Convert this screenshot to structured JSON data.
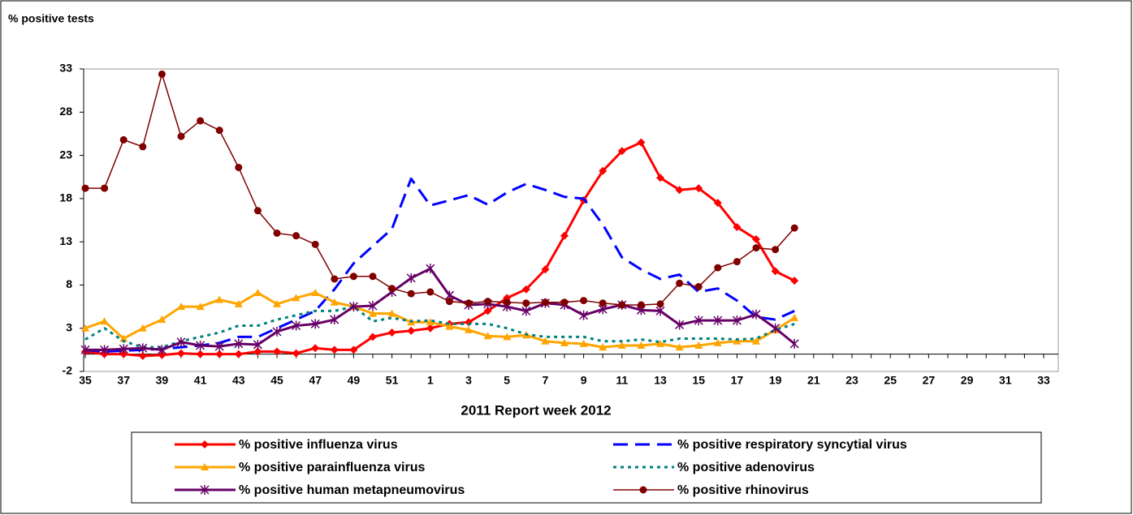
{
  "chart_data": {
    "type": "line",
    "y_label": "% positive tests",
    "x_label": "2011 Report week   2012",
    "categories": [
      "35",
      null,
      "37",
      null,
      "39",
      null,
      "41",
      null,
      "43",
      null,
      "45",
      null,
      "47",
      null,
      "49",
      null,
      "51",
      null,
      "1",
      null,
      "3",
      null,
      "5",
      null,
      "7",
      null,
      "9",
      null,
      "11",
      null,
      "13",
      null,
      "15",
      null,
      "17",
      null,
      "19",
      null,
      "21",
      null,
      "23",
      null,
      "25",
      null,
      "27",
      null,
      "29",
      null,
      "31",
      null,
      "33"
    ],
    "ylim": [
      -2,
      33
    ],
    "yticks": [
      -2,
      3,
      8,
      13,
      18,
      23,
      28,
      33
    ],
    "grid": false,
    "legend": "bottom",
    "series": [
      {
        "name": "% positive influenza virus",
        "color": "#ff0000",
        "marker": "diamond",
        "dash": "solid",
        "values": [
          0.3,
          0,
          0,
          -0.2,
          -0.1,
          0.1,
          0,
          0,
          0,
          0.3,
          0.3,
          0.1,
          0.7,
          0.5,
          0.5,
          2,
          2.5,
          2.7,
          3,
          3.5,
          3.7,
          5,
          6.5,
          7.5,
          9.8,
          13.7,
          17.8,
          21.2,
          23.5,
          24.5,
          20.4,
          19,
          19.2,
          17.5,
          14.7,
          13.3,
          9.6,
          8.5,
          null,
          null,
          null,
          null,
          null,
          null,
          null,
          null,
          null,
          null,
          null,
          null,
          null
        ]
      },
      {
        "name": "% positive respiratory syncytial virus",
        "color": "#0000ff",
        "marker": "none",
        "dash": "dash",
        "values": [
          0.5,
          0.3,
          0.4,
          0.5,
          0.6,
          0.8,
          1,
          1.3,
          2,
          2,
          3,
          4,
          5,
          7.5,
          10.5,
          12.5,
          14.5,
          20.3,
          17.2,
          17.8,
          18.4,
          17.3,
          18.7,
          19.7,
          19,
          18.2,
          18,
          15,
          11.2,
          9.8,
          8.7,
          9.2,
          7.2,
          7.6,
          6.2,
          4.3,
          4,
          5,
          null,
          null,
          null,
          null,
          null,
          null,
          null,
          null,
          null,
          null,
          null,
          null,
          null
        ]
      },
      {
        "name": "% positive parainfluenza virus",
        "color": "#ffa500",
        "marker": "triangle",
        "dash": "solid",
        "values": [
          3,
          3.8,
          1.8,
          3,
          4,
          5.5,
          5.5,
          6.3,
          5.8,
          7.1,
          5.8,
          6.5,
          7.1,
          6,
          5.5,
          4.7,
          4.7,
          3.7,
          3.7,
          3.2,
          2.8,
          2.1,
          2,
          2.2,
          1.5,
          1.3,
          1.2,
          0.8,
          1,
          1,
          1.2,
          0.8,
          1,
          1.3,
          1.5,
          1.5,
          2.8,
          4.2,
          null,
          null,
          null,
          null,
          null,
          null,
          null,
          null,
          null,
          null,
          null,
          null,
          null
        ]
      },
      {
        "name": "% positive adenovirus",
        "color": "#008080",
        "marker": "none",
        "dash": "dot",
        "values": [
          1.7,
          3,
          1.5,
          0.8,
          0.8,
          1.5,
          2,
          2.5,
          3.3,
          3.3,
          4,
          4.5,
          5,
          5,
          5.5,
          3.8,
          4.2,
          3.8,
          3.9,
          3.5,
          3.5,
          3.5,
          3,
          2.3,
          2,
          2,
          2,
          1.5,
          1.5,
          1.7,
          1.4,
          1.8,
          1.8,
          1.8,
          1.7,
          1.8,
          2.8,
          3.5,
          null,
          null,
          null,
          null,
          null,
          null,
          null,
          null,
          null,
          null,
          null,
          null,
          null
        ]
      },
      {
        "name": "% positive human metapneumovirus",
        "color": "#660066",
        "marker": "asterisk",
        "dash": "solid",
        "values": [
          0.5,
          0.5,
          0.6,
          0.7,
          0.5,
          1.4,
          1,
          0.9,
          1.2,
          1.1,
          2.6,
          3.3,
          3.5,
          4,
          5.5,
          5.6,
          7.2,
          8.8,
          9.9,
          6.8,
          5.7,
          5.8,
          5.5,
          5,
          5.9,
          5.7,
          4.5,
          5.2,
          5.7,
          5.1,
          5,
          3.4,
          3.9,
          3.9,
          3.9,
          4.6,
          3,
          1.2,
          null,
          null,
          null,
          null,
          null,
          null,
          null,
          null,
          null,
          null,
          null,
          null,
          null
        ]
      },
      {
        "name": "% positive rhinovirus",
        "color": "#800000",
        "marker": "circle",
        "dash": "thin",
        "values": [
          19.2,
          19.2,
          24.8,
          24,
          32.4,
          25.2,
          27,
          25.9,
          21.6,
          16.6,
          14,
          13.7,
          12.7,
          8.7,
          9,
          9,
          7.6,
          7,
          7.2,
          6.1,
          5.9,
          6.1,
          6,
          5.9,
          6,
          6,
          6.2,
          5.9,
          5.7,
          5.7,
          5.8,
          8.2,
          7.8,
          10,
          10.7,
          12.3,
          12.1,
          14.6,
          null,
          null,
          null,
          null,
          null,
          null,
          null,
          null,
          null,
          null,
          null,
          null,
          null
        ]
      }
    ]
  }
}
